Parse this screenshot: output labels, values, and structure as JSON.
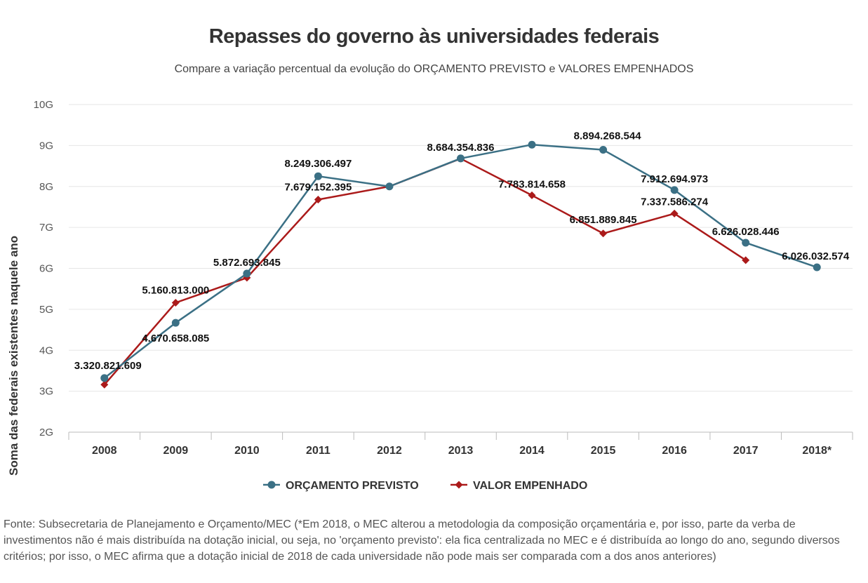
{
  "header": {
    "title": "Repasses do governo às universidades federais",
    "subtitle": "Compare a variação percentual da evolução do ORÇAMENTO PREVISTO e VALORES EMPENHADOS"
  },
  "chart_data": {
    "type": "line",
    "title": "Repasses do governo às universidades federais",
    "subtitle": "Compare a variação percentual da evolução do ORÇAMENTO PREVISTO e VALORES EMPENHADOS",
    "ylabel": "Soma das federais existentes naquele ano",
    "xlabel": "",
    "categories": [
      "2008",
      "2009",
      "2010",
      "2011",
      "2012",
      "2013",
      "2014",
      "2015",
      "2016",
      "2017",
      "2018*"
    ],
    "ylim": [
      2000000000,
      10000000000
    ],
    "yticks": [
      {
        "value": 10000000000,
        "label": "10G"
      },
      {
        "value": 9000000000,
        "label": "9G"
      },
      {
        "value": 8000000000,
        "label": "8G"
      },
      {
        "value": 7000000000,
        "label": "7G"
      },
      {
        "value": 6000000000,
        "label": "6G"
      },
      {
        "value": 5000000000,
        "label": "5G"
      },
      {
        "value": 4000000000,
        "label": "4G"
      },
      {
        "value": 3000000000,
        "label": "3G"
      },
      {
        "value": 2000000000,
        "label": "2G"
      }
    ],
    "grid": true,
    "legend_position": "bottom",
    "series": [
      {
        "name": "ORÇAMENTO PREVISTO",
        "color": "#3b7085",
        "marker": "circle",
        "values": [
          3320821609,
          4670658085,
          5872693845,
          8249306497,
          8000000000,
          8684354836,
          9020000000,
          8894268544,
          7912694973,
          6626028446,
          6026032574
        ],
        "labels": [
          "3.320.821.609",
          "4.670.658.085",
          "5.872.693.845",
          "8.249.306.497",
          "",
          "8.684.354.836",
          "",
          "8.894.268.544",
          "7.912.694.973",
          "6.626.028.446",
          "6.026.032.574"
        ]
      },
      {
        "name": "VALOR EMPENHADO",
        "color": "#ab1a1a",
        "marker": "diamond",
        "values": [
          3160000000,
          5160813000,
          5770000000,
          7679152395,
          8000000000,
          8680000000,
          7783814658,
          6851889845,
          7337586274,
          6200000000,
          null
        ],
        "labels": [
          "",
          "5.160.813.000",
          "",
          "7.679.152.395",
          "",
          "",
          "7.783.814.658",
          "6.851.889.845",
          "7.337.586.274",
          "",
          ""
        ]
      }
    ]
  },
  "footer": {
    "source": "Fonte: Subsecretaria de Planejamento e Orçamento/MEC (*Em 2018, o MEC alterou a metodologia da composição orçamentária e, por isso, parte da verba de investimentos não é mais distribuída na dotação inicial, ou seja, no 'orçamento previsto': ela fica centralizada no MEC e é distribuída ao longo do ano, segundo diversos critérios; por isso, o MEC afirma que a dotação inicial de 2018 de cada universidade não pode mais ser comparada com a dos anos anteriores)"
  }
}
